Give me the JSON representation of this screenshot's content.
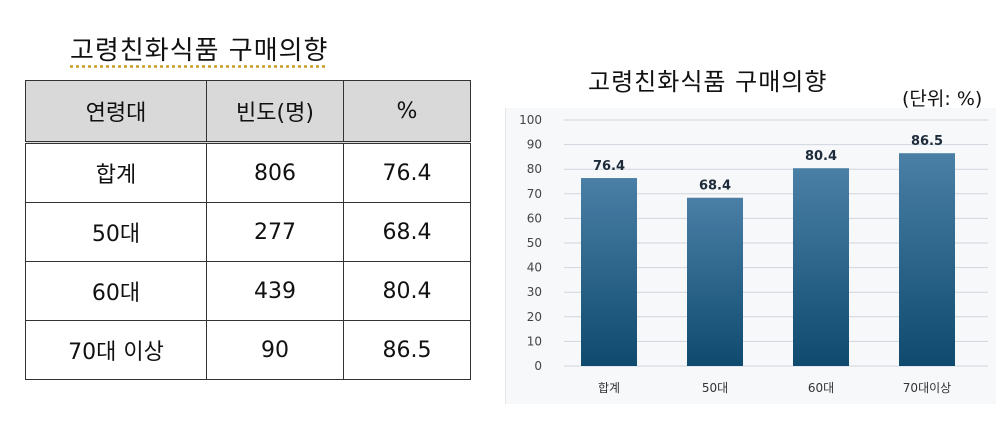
{
  "left_title": "고령친화식품  구매의향",
  "table": {
    "headers": [
      "연령대",
      "빈도(명)",
      "%"
    ],
    "rows": [
      [
        "합계",
        "806",
        "76.4"
      ],
      [
        "50대",
        "277",
        "68.4"
      ],
      [
        "60대",
        "439",
        "80.4"
      ],
      [
        "70대  이상",
        "90",
        "86.5"
      ]
    ]
  },
  "right_title": "고령친화식품  구매의향",
  "unit_label": "(단위:  %)",
  "chart_data": {
    "type": "bar",
    "categories": [
      "합계",
      "50대",
      "60대",
      "70대이상"
    ],
    "values": [
      76.4,
      68.4,
      80.4,
      86.5
    ],
    "value_labels": [
      "76.4",
      "68.4",
      "80.4",
      "86.5"
    ],
    "ylim": [
      0,
      100
    ],
    "yticks": [
      0,
      10,
      20,
      30,
      40,
      50,
      60,
      70,
      80,
      90,
      100
    ],
    "grid": true,
    "colors": {
      "bar_top": "#4a7fa6",
      "bar_bottom": "#0f4a6e",
      "grid": "#cfd6de"
    }
  }
}
